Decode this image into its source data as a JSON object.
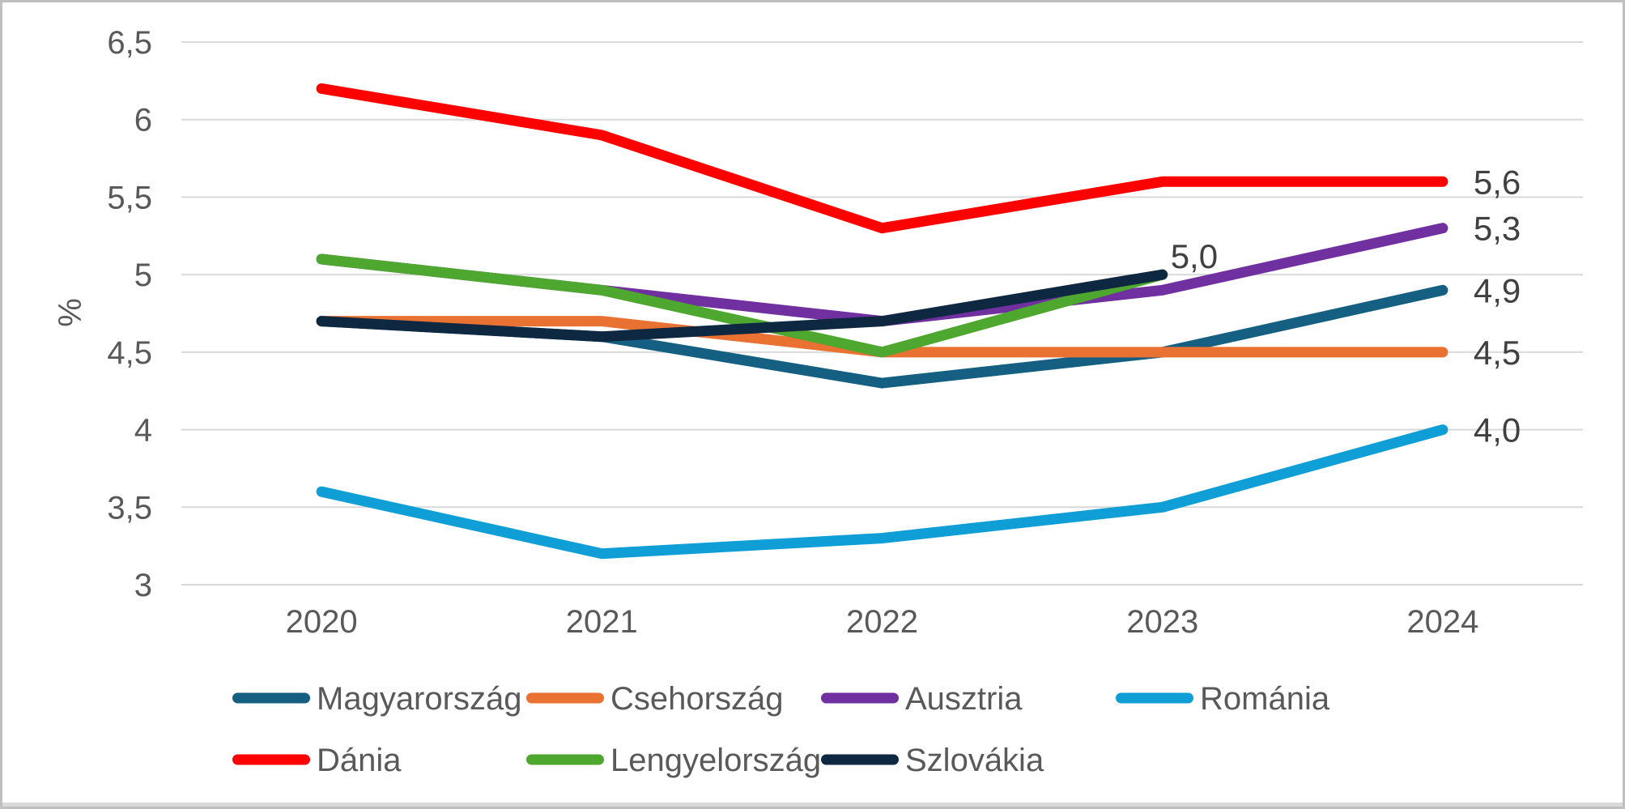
{
  "chart_data": {
    "type": "line",
    "title": "",
    "xlabel": "",
    "ylabel": "%",
    "grid": true,
    "legend_position": "bottom",
    "decimal_separator": ",",
    "categories": [
      "2020",
      "2021",
      "2022",
      "2023",
      "2024"
    ],
    "y_axis": {
      "min": 3,
      "max": 6.5,
      "step": 0.5,
      "tick_labels": [
        "3",
        "3,5",
        "4",
        "4,5",
        "5",
        "5,5",
        "6",
        "6,5"
      ]
    },
    "series": [
      {
        "name": "Magyarország",
        "color": "#156082",
        "values": [
          4.7,
          4.6,
          4.3,
          4.5,
          4.9
        ],
        "end_label": "4,9",
        "end_label_placement": "right"
      },
      {
        "name": "Csehország",
        "color": "#E97132",
        "values": [
          4.7,
          4.7,
          4.5,
          4.5,
          4.5
        ],
        "end_label": "4,5",
        "end_label_placement": "right"
      },
      {
        "name": "Ausztria",
        "color": "#7030A0",
        "values": [
          5.1,
          4.9,
          4.7,
          4.9,
          5.3
        ],
        "end_label": "5,3",
        "end_label_placement": "right"
      },
      {
        "name": "Románia",
        "color": "#0F9ED5",
        "values": [
          3.6,
          3.2,
          3.3,
          3.5,
          4.0
        ],
        "end_label": "4,0",
        "end_label_placement": "right"
      },
      {
        "name": "Dánia",
        "color": "#FF0000",
        "values": [
          6.2,
          5.9,
          5.3,
          5.6,
          5.6
        ],
        "end_label": "5,6",
        "end_label_placement": "right"
      },
      {
        "name": "Lengyelország",
        "color": "#4EA72E",
        "values": [
          5.1,
          4.9,
          4.5,
          5.0,
          null
        ],
        "end_label": "",
        "end_label_placement": "none"
      },
      {
        "name": "Szlovákia",
        "color": "#0E2841",
        "values": [
          4.7,
          4.6,
          4.7,
          5.0,
          null
        ],
        "end_label": "5,0",
        "end_label_placement": "above-right"
      }
    ],
    "legend_rows": [
      [
        0,
        1,
        2,
        3
      ],
      [
        4,
        5,
        6
      ]
    ]
  },
  "frame": {
    "border_color": "#BFBFBF",
    "bottom_strip_color": "#D9D9D9",
    "gridline_color": "#D9D9D9",
    "axis_text_color": "#595959",
    "value_label_color": "#404040",
    "background": "#FFFFFF"
  }
}
